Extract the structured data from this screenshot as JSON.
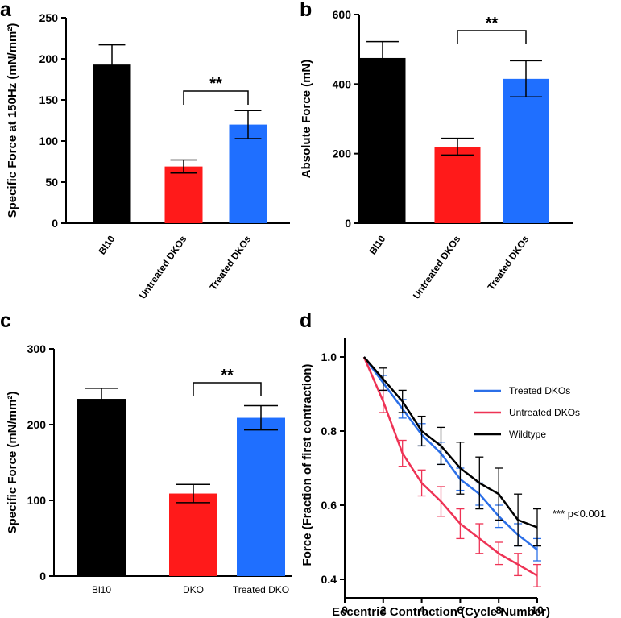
{
  "panels": {
    "a": "a",
    "b": "b",
    "c": "c",
    "d": "d"
  },
  "chart_data": [
    {
      "panel": "a",
      "type": "bar",
      "ylabel": "Specific Force at 150Hz (mN/mm²)",
      "ylim": [
        0,
        250
      ],
      "yticks": [
        "0",
        "50",
        "100",
        "150",
        "200",
        "250"
      ],
      "categories": [
        "Bl10",
        "Untreated DKOs",
        "Treated DKOs"
      ],
      "values": [
        193,
        69,
        120
      ],
      "errors": [
        24,
        8,
        17
      ],
      "colors": [
        "#000000",
        "#ff1a1a",
        "#1f6fff"
      ],
      "significance": {
        "label": "**",
        "from": 1,
        "to": 2
      }
    },
    {
      "panel": "b",
      "type": "bar",
      "ylabel": "Absolute Force (mN)",
      "ylim": [
        0,
        600
      ],
      "yticks": [
        "0",
        "200",
        "400",
        "600"
      ],
      "categories": [
        "Bl10",
        "Untreated DKOs",
        "Treated DKOs"
      ],
      "values": [
        475,
        220,
        415
      ],
      "errors": [
        47,
        24,
        52
      ],
      "colors": [
        "#000000",
        "#ff1a1a",
        "#1f6fff"
      ],
      "significance": {
        "label": "**",
        "from": 1,
        "to": 2
      }
    },
    {
      "panel": "c",
      "type": "bar",
      "ylabel": "Specific Force (mN/mm²)",
      "ylim": [
        0,
        300
      ],
      "yticks": [
        "0",
        "100",
        "200",
        "300"
      ],
      "categories": [
        "Bl10",
        "DKO",
        "Treated DKO"
      ],
      "values": [
        234,
        109,
        209
      ],
      "errors": [
        14,
        12,
        16
      ],
      "colors": [
        "#000000",
        "#ff1a1a",
        "#1f6fff"
      ],
      "significance": {
        "label": "**",
        "from": 1,
        "to": 2
      }
    },
    {
      "panel": "d",
      "type": "line",
      "xlabel": "Eccentric Contraction (Cycle Number)",
      "ylabel": "Force (Fraction of first contraction)",
      "xlim": [
        0,
        10
      ],
      "ylim": [
        0.35,
        1.05
      ],
      "xticks": [
        "0",
        "2",
        "4",
        "6",
        "8",
        "10"
      ],
      "yticks": [
        "0.4",
        "0.6",
        "0.8",
        "1.0"
      ],
      "x": [
        1,
        2,
        3,
        4,
        5,
        6,
        7,
        8,
        9,
        10
      ],
      "series": [
        {
          "name": "Treated DKOs",
          "color": "#2b6fe8",
          "values": [
            1.0,
            0.93,
            0.86,
            0.79,
            0.74,
            0.67,
            0.63,
            0.57,
            0.52,
            0.48
          ],
          "errors": [
            0,
            0.02,
            0.025,
            0.03,
            0.03,
            0.03,
            0.03,
            0.03,
            0.03,
            0.03
          ]
        },
        {
          "name": "Untreated DKOs",
          "color": "#ee3355",
          "values": [
            1.0,
            0.88,
            0.74,
            0.66,
            0.61,
            0.55,
            0.51,
            0.47,
            0.44,
            0.41
          ],
          "errors": [
            0,
            0.03,
            0.035,
            0.035,
            0.04,
            0.04,
            0.04,
            0.03,
            0.03,
            0.03
          ]
        },
        {
          "name": "Wildtype",
          "color": "#000000",
          "values": [
            1.0,
            0.94,
            0.88,
            0.8,
            0.76,
            0.7,
            0.66,
            0.63,
            0.56,
            0.54
          ],
          "errors": [
            0,
            0.03,
            0.03,
            0.04,
            0.05,
            0.07,
            0.07,
            0.07,
            0.07,
            0.05
          ]
        }
      ],
      "legend_position": "top-right",
      "annotation": "*** p<0.001"
    }
  ]
}
